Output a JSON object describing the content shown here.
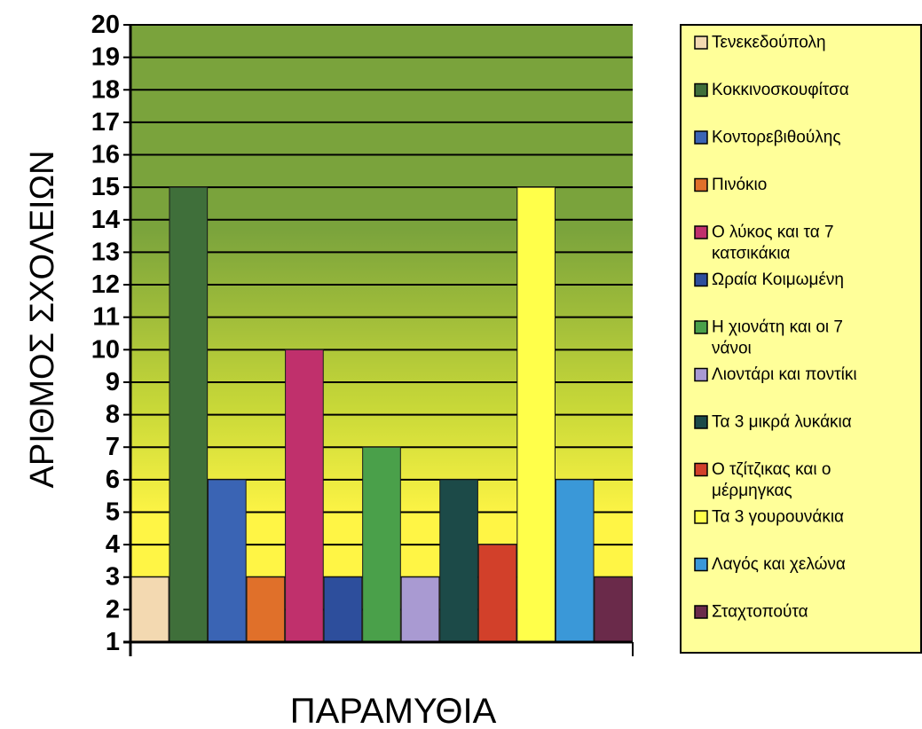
{
  "chart_data": {
    "type": "bar",
    "title": "",
    "xlabel": "ΠΑΡΑΜΥΘΙΑ",
    "ylabel": "ΑΡΙΘΜΟΣ ΣΧΟΛΕΙΩΝ",
    "ylim": [
      1,
      20
    ],
    "yticks": [
      "1",
      "2",
      "3",
      "4",
      "5",
      "6",
      "7",
      "8",
      "9",
      "10",
      "11",
      "12",
      "13",
      "14",
      "15",
      "16",
      "17",
      "18",
      "19",
      "20"
    ],
    "grid": true,
    "legend_position": "right",
    "plot_background": {
      "top": "#7aa33c",
      "middle": "#c8d838",
      "bottom": "#fff545"
    },
    "legend_background": "#ffff99",
    "series": [
      {
        "name": "Τενεκεδούπολη",
        "value": 3,
        "color": "#f3d9b1",
        "legend_lines": [
          "Τενεκεδούπολη"
        ]
      },
      {
        "name": "Κοκκινοσκουφίτσα",
        "value": 15,
        "color": "#3f6f3a",
        "legend_lines": [
          "Κοκκινοσκουφίτσα"
        ]
      },
      {
        "name": "Κοντορεβιθούλης",
        "value": 6,
        "color": "#3a64b4",
        "legend_lines": [
          "Κοντορεβιθούλης"
        ]
      },
      {
        "name": "Πινόκιο",
        "value": 3,
        "color": "#e0702a",
        "legend_lines": [
          "Πινόκιο"
        ]
      },
      {
        "name": "Ο λύκος και τα 7 κατσικάκια",
        "value": 10,
        "color": "#c0306c",
        "legend_lines": [
          "Ο λύκος και τα 7",
          "κατσικάκια"
        ]
      },
      {
        "name": "Ωραία Κοιμωμένη",
        "value": 3,
        "color": "#2d4e9c",
        "legend_lines": [
          "Ωραία Κοιμωμένη"
        ]
      },
      {
        "name": "Η χιονάτη και οι 7 νάνοι",
        "value": 7,
        "color": "#4aa04a",
        "legend_lines": [
          "Η χιονάτη και οι 7",
          "νάνοι"
        ]
      },
      {
        "name": "Λιοντάρι και ποντίκι",
        "value": 3,
        "color": "#a99ad2",
        "legend_lines": [
          "Λιοντάρι και ποντίκι"
        ]
      },
      {
        "name": "Τα 3 μικρά λυκάκια",
        "value": 6,
        "color": "#1c4a48",
        "legend_lines": [
          "Τα 3 μικρά λυκάκια"
        ]
      },
      {
        "name": "Ο τζίτζικας και ο μέρμηγκας",
        "value": 4,
        "color": "#d2402a",
        "legend_lines": [
          "Ο τζίτζικας και ο",
          "μέρμηγκας"
        ]
      },
      {
        "name": "Τα 3 γουρουνάκια",
        "value": 15,
        "color": "#ffff4a",
        "legend_lines": [
          "Τα 3 γουρουνάκια"
        ]
      },
      {
        "name": "Λαγός και χελώνα",
        "value": 6,
        "color": "#3a98d8",
        "legend_lines": [
          "Λαγός και χελώνα"
        ]
      },
      {
        "name": "Σταχτοπούτα",
        "value": 3,
        "color": "#6a2a4a",
        "legend_lines": [
          "Σταχτοπούτα"
        ]
      }
    ]
  }
}
